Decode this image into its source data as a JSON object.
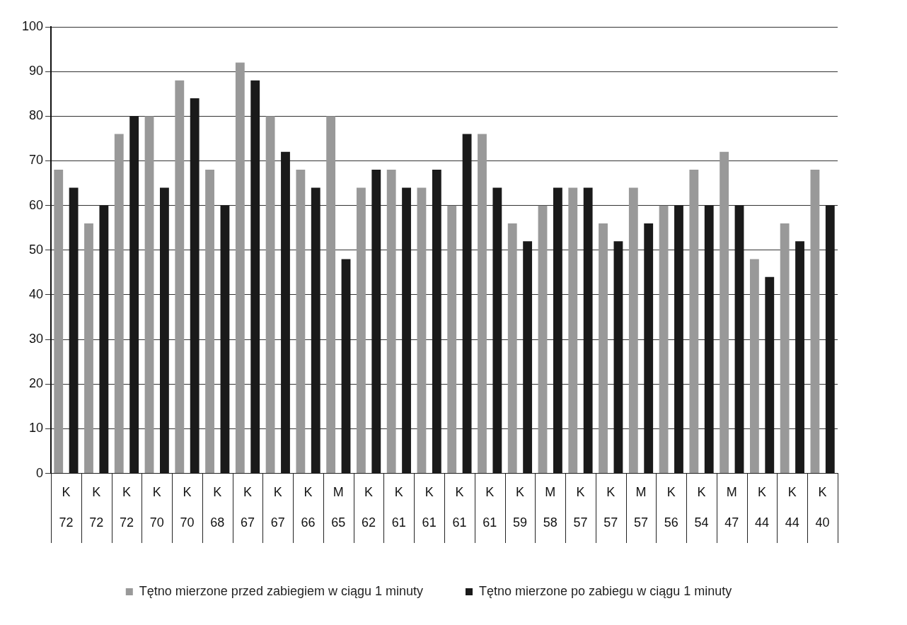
{
  "chart_data": {
    "type": "bar",
    "categories": [
      "K\n72",
      "K\n72",
      "K\n72",
      "K\n70",
      "K\n70",
      "K\n68",
      "K\n67",
      "K\n67",
      "K\n66",
      "M\n65",
      "K\n62",
      "K\n61",
      "K\n61",
      "K\n61",
      "K\n61",
      "K\n59",
      "M\n58",
      "K\n57",
      "K\n57",
      "M\n57",
      "K\n56",
      "K\n54",
      "M\n47",
      "K\n44",
      "K\n44",
      "K\n40"
    ],
    "series": [
      {
        "name": "Tętno mierzone przed zabiegiem w ciągu 1 minuty",
        "color": "#999999",
        "values": [
          68,
          56,
          76,
          80,
          88,
          68,
          92,
          80,
          68,
          80,
          64,
          68,
          64,
          60,
          76,
          56,
          60,
          64,
          56,
          64,
          60,
          68,
          72,
          48,
          56,
          68
        ]
      },
      {
        "name": "Tętno mierzone po zabiegu w ciągu 1 minuty",
        "color": "#1a1a1a",
        "values": [
          64,
          60,
          80,
          64,
          84,
          60,
          88,
          72,
          64,
          48,
          68,
          64,
          68,
          76,
          64,
          52,
          64,
          64,
          52,
          56,
          60,
          60,
          60,
          44,
          52,
          60
        ]
      }
    ],
    "ylim": [
      0,
      100
    ],
    "yticks": [
      0,
      10,
      20,
      30,
      40,
      50,
      60,
      70,
      80,
      90,
      100
    ],
    "grid": "y",
    "legend": "bottom"
  }
}
